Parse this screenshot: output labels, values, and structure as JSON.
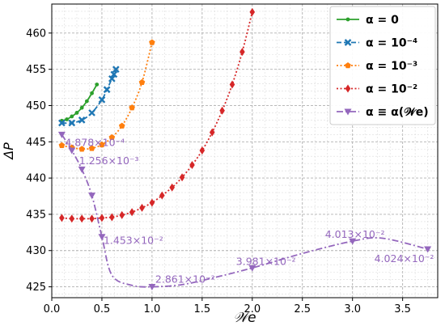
{
  "chart_data": {
    "type": "line",
    "xlabel": "𝒲e",
    "ylabel": "ΔP",
    "xlim": [
      0,
      3.85
    ],
    "ylim": [
      423.5,
      464
    ],
    "x_ticks": [
      "0.0",
      "0.5",
      "1.0",
      "1.5",
      "2.0",
      "2.5",
      "3.0",
      "3.5"
    ],
    "y_ticks": [
      "425",
      "430",
      "435",
      "440",
      "445",
      "450",
      "455",
      "460"
    ],
    "grid": true,
    "legend_position": "top-right",
    "series": [
      {
        "name": "α = 0",
        "color": "#2ca02c",
        "line_style": "solid",
        "marker": "dot",
        "x": [
          0.1,
          0.15,
          0.2,
          0.25,
          0.3,
          0.35,
          0.4,
          0.45
        ],
        "y": [
          447.9,
          448.1,
          448.5,
          449.0,
          449.7,
          450.6,
          451.7,
          452.9
        ]
      },
      {
        "name": "α = 10⁻⁴",
        "color": "#1f77b4",
        "line_style": "dashed",
        "marker": "x",
        "x": [
          0.1,
          0.2,
          0.3,
          0.4,
          0.5,
          0.55,
          0.6,
          0.62,
          0.64
        ],
        "y": [
          447.6,
          447.6,
          448.0,
          449.0,
          450.8,
          452.2,
          453.7,
          454.3,
          455.0
        ]
      },
      {
        "name": "α = 10⁻³",
        "color": "#ff7f0e",
        "line_style": "dotted",
        "marker": "pentagon",
        "x": [
          0.1,
          0.2,
          0.3,
          0.4,
          0.5,
          0.6,
          0.7,
          0.8,
          0.9,
          1.0
        ],
        "y": [
          444.5,
          444.2,
          444.0,
          444.1,
          444.6,
          445.6,
          447.2,
          449.7,
          453.2,
          458.7
        ]
      },
      {
        "name": "α = 10⁻²",
        "color": "#d62728",
        "line_style": "dotted",
        "marker": "diamond",
        "x": [
          0.1,
          0.2,
          0.3,
          0.4,
          0.5,
          0.6,
          0.7,
          0.8,
          0.9,
          1.0,
          1.1,
          1.2,
          1.3,
          1.4,
          1.5,
          1.6,
          1.7,
          1.8,
          1.9,
          2.0
        ],
        "y": [
          434.5,
          434.4,
          434.4,
          434.4,
          434.5,
          434.6,
          434.9,
          435.3,
          435.9,
          436.6,
          437.6,
          438.7,
          440.1,
          441.8,
          443.8,
          446.3,
          449.3,
          452.9,
          457.4,
          462.9
        ]
      },
      {
        "name": "α ≡ α(𝒲e)",
        "color": "#9467bd",
        "line_style": "dashdot",
        "marker": "triangle-down",
        "x": [
          0.1,
          0.2,
          0.3,
          0.4,
          0.5,
          0.6,
          0.8,
          1.0,
          1.3,
          1.6,
          2.0,
          2.5,
          3.0,
          3.3,
          3.75
        ],
        "y": [
          446.0,
          443.8,
          441.2,
          437.6,
          431.9,
          426.6,
          425.2,
          425.0,
          425.3,
          426.2,
          427.6,
          429.6,
          431.3,
          431.7,
          430.2
        ],
        "marker_x": [
          0.1,
          0.2,
          0.3,
          0.4,
          0.5,
          1.0,
          2.0,
          3.0,
          3.75
        ],
        "marker_y": [
          446.0,
          443.8,
          441.2,
          437.6,
          431.9,
          425.0,
          427.6,
          431.3,
          430.2
        ]
      }
    ],
    "annotations": [
      {
        "text": "4.878×10⁻⁴",
        "x": 0.1,
        "y": 446.0
      },
      {
        "text": "1.256×10⁻³",
        "x": 0.2,
        "y": 443.8
      },
      {
        "text": "1.453×10⁻²",
        "x": 0.5,
        "y": 431.9
      },
      {
        "text": "2.861×10⁻²",
        "x": 1.0,
        "y": 425.0
      },
      {
        "text": "3.981×10⁻²",
        "x": 2.0,
        "y": 427.6
      },
      {
        "text": "4.013×10⁻²",
        "x": 3.0,
        "y": 431.3
      },
      {
        "text": "4.024×10⁻²",
        "x": 3.75,
        "y": 430.2
      }
    ]
  }
}
